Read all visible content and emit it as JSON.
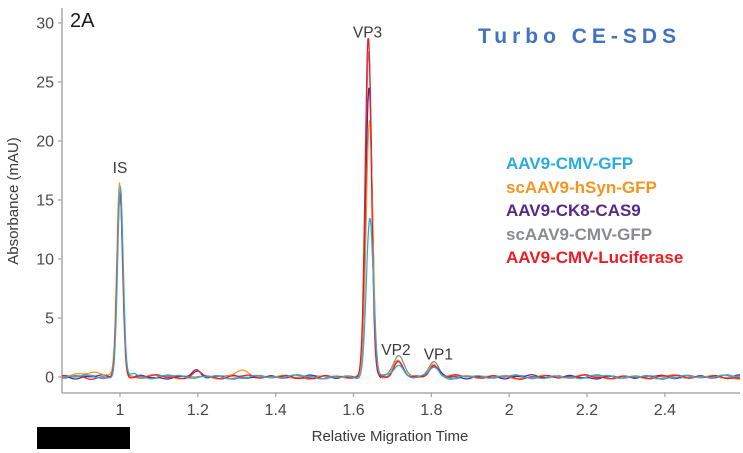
{
  "panel_label": "2A",
  "chart_data": {
    "type": "line",
    "title": "Turbo CE-SDS",
    "title_color": "#4173C4",
    "xlabel": "Relative Migration Time",
    "ylabel": "Absorbance (mAU)",
    "xlim": [
      0.851,
      2.593
    ],
    "ylim": [
      -1.36,
      31.1
    ],
    "grid": false,
    "legend_position": "right",
    "axis_color": "#A8A8A8",
    "tick_text_color": "#4a4a4a",
    "label_text_color": "#3a3a3a",
    "xticks": [
      {
        "v": 1,
        "label": "1"
      },
      {
        "v": 1.2,
        "label": "1.2"
      },
      {
        "v": 1.4,
        "label": "1.4"
      },
      {
        "v": 1.6,
        "label": "1.6"
      },
      {
        "v": 1.8,
        "label": "1.8"
      },
      {
        "v": 2,
        "label": "2"
      },
      {
        "v": 2.2,
        "label": "2.2"
      },
      {
        "v": 2.4,
        "label": "2.4"
      }
    ],
    "yticks": [
      {
        "v": 0,
        "label": "0"
      },
      {
        "v": 5,
        "label": "5"
      },
      {
        "v": 10,
        "label": "10"
      },
      {
        "v": 15,
        "label": "15"
      },
      {
        "v": 20,
        "label": "20"
      },
      {
        "v": 25,
        "label": "25"
      },
      {
        "v": 30,
        "label": "30"
      }
    ],
    "peak_annotations": [
      {
        "text": "IS",
        "x": 1.0,
        "y": 17.7
      },
      {
        "text": "VP3",
        "x": 1.636,
        "y": 29.2
      },
      {
        "text": "VP2",
        "x": 1.709,
        "y": 2.3
      },
      {
        "text": "VP1",
        "x": 1.818,
        "y": 1.9
      }
    ],
    "series": [
      {
        "name": "AAV9-CMV-GFP",
        "color": "#29ABE2",
        "peaks": [
          {
            "c": 1.001,
            "h": 16.1,
            "w": 0.0072
          },
          {
            "c": 1.036,
            "h": 0.35,
            "w": 0.009
          },
          {
            "c": 1.642,
            "h": 13.5,
            "w": 0.009
          },
          {
            "c": 1.716,
            "h": 1.0,
            "w": 0.012
          },
          {
            "c": 1.807,
            "h": 0.85,
            "w": 0.012
          }
        ]
      },
      {
        "name": "scAAV9-hSyn-GFP",
        "color": "#F7941E",
        "peaks": [
          {
            "c": 0.928,
            "h": 0.5,
            "w": 0.028
          },
          {
            "c": 0.999,
            "h": 16.4,
            "w": 0.0072
          },
          {
            "c": 1.31,
            "h": 0.42,
            "w": 0.018
          },
          {
            "c": 1.641,
            "h": 21.6,
            "w": 0.0085
          },
          {
            "c": 1.714,
            "h": 1.5,
            "w": 0.012
          },
          {
            "c": 1.806,
            "h": 1.15,
            "w": 0.012
          }
        ]
      },
      {
        "name": "AAV9-CK8-CAS9",
        "color": "#562989",
        "peaks": [
          {
            "c": 1.0,
            "h": 15.7,
            "w": 0.0072
          },
          {
            "c": 1.197,
            "h": 0.55,
            "w": 0.011
          },
          {
            "c": 1.64,
            "h": 24.7,
            "w": 0.0085
          },
          {
            "c": 1.714,
            "h": 1.25,
            "w": 0.012
          },
          {
            "c": 1.805,
            "h": 0.9,
            "w": 0.012
          }
        ]
      },
      {
        "name": "scAAV9-CMV-GFP",
        "color": "#898B8E",
        "peaks": [
          {
            "c": 1.0,
            "h": 15.85,
            "w": 0.0072
          },
          {
            "c": 1.639,
            "h": 27.6,
            "w": 0.0082
          },
          {
            "c": 1.717,
            "h": 1.85,
            "w": 0.013
          },
          {
            "c": 1.808,
            "h": 1.3,
            "w": 0.0125
          }
        ]
      },
      {
        "name": "AAV9-CMV-Luciferase",
        "color": "#ED1C24",
        "peaks": [
          {
            "c": 1.0,
            "h": 15.6,
            "w": 0.0072
          },
          {
            "c": 1.201,
            "h": 0.45,
            "w": 0.011
          },
          {
            "c": 1.638,
            "h": 28.8,
            "w": 0.008
          },
          {
            "c": 1.7145,
            "h": 1.35,
            "w": 0.012
          },
          {
            "c": 1.806,
            "h": 1.0,
            "w": 0.012
          }
        ]
      }
    ],
    "z_order": [
      3,
      2,
      1,
      4,
      0
    ],
    "noise_amp": 0.09
  }
}
